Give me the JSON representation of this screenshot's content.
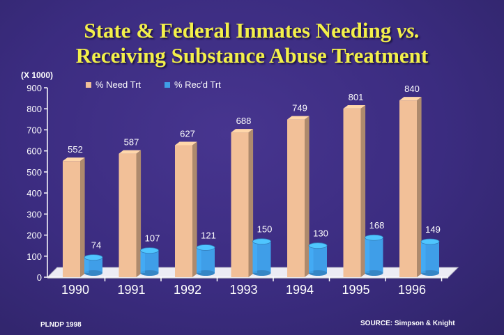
{
  "title": {
    "line1_a": "State & Federal Inmates Needing ",
    "line1_vs": "vs.",
    "line2": "Receiving Substance Abuse Treatment"
  },
  "footer": {
    "left": "PLNDP 1998",
    "right": "SOURCE: Simpson & Knight"
  },
  "colors": {
    "need": "#f2c098",
    "received": "#3f9ee8",
    "background": "#3b2c80",
    "title": "#f3f04a"
  },
  "chart_data": {
    "type": "bar",
    "unit_label": "(X 1000)",
    "categories": [
      "1990",
      "1991",
      "1992",
      "1993",
      "1994",
      "1995",
      "1996"
    ],
    "series": [
      {
        "name": "% Need Trt",
        "values": [
          552,
          587,
          627,
          688,
          749,
          801,
          840
        ]
      },
      {
        "name": "% Rec'd Trt",
        "values": [
          74,
          107,
          121,
          150,
          130,
          168,
          149
        ]
      }
    ],
    "yticks": [
      "0",
      "100",
      "200",
      "300",
      "400",
      "500",
      "600",
      "700",
      "800",
      "900"
    ],
    "ylim": [
      0,
      900
    ],
    "legend_position": "top-left",
    "grid": false
  }
}
